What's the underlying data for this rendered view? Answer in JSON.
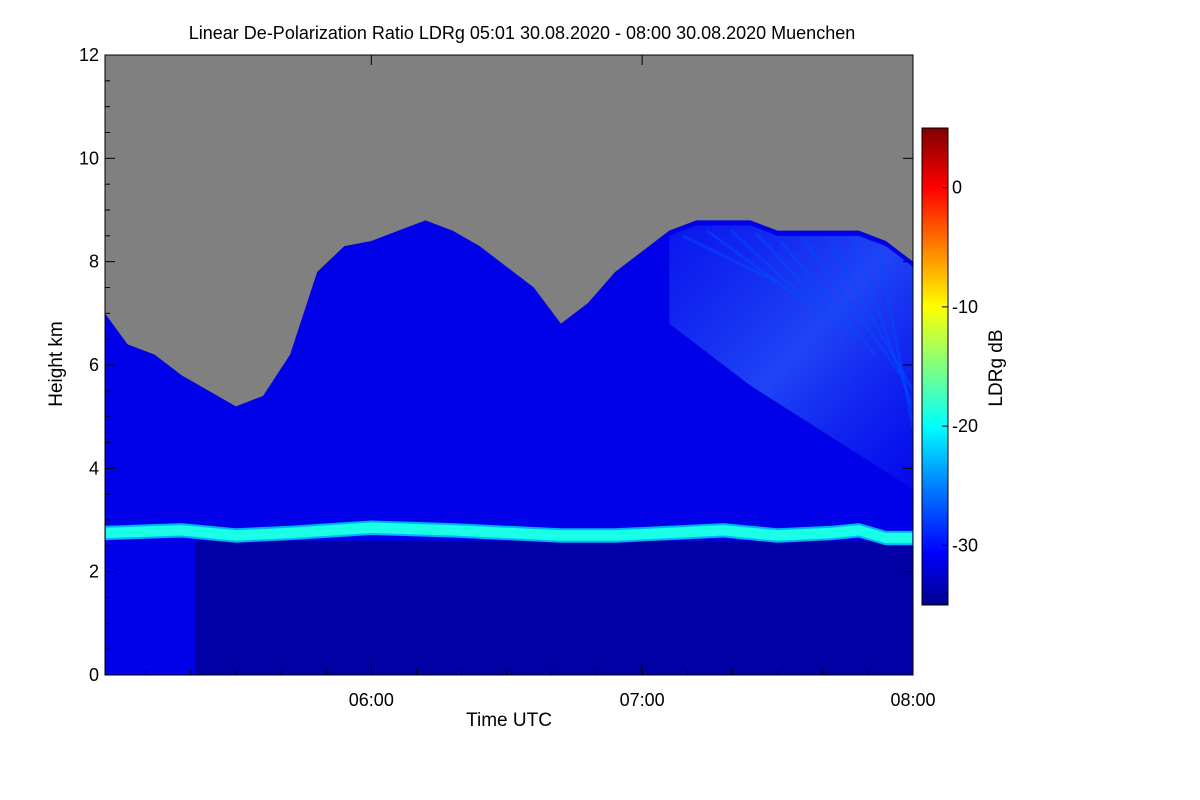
{
  "chart_data": {
    "type": "heatmap",
    "title": "Linear De-Polarization Ratio LDRg   05:01 30.08.2020 - 08:00 30.08.2020 Muenchen",
    "xlabel": "Time UTC",
    "ylabel": "Height km",
    "x_range_hours": [
      5.0167,
      8.0
    ],
    "y_range_km": [
      0,
      12
    ],
    "x_ticks": [
      {
        "label": "06:00",
        "value": 6.0
      },
      {
        "label": "07:00",
        "value": 7.0
      },
      {
        "label": "08:00",
        "value": 8.0
      }
    ],
    "y_ticks": [
      {
        "label": "0",
        "value": 0
      },
      {
        "label": "2",
        "value": 2
      },
      {
        "label": "4",
        "value": 4
      },
      {
        "label": "6",
        "value": 6
      },
      {
        "label": "8",
        "value": 8
      },
      {
        "label": "10",
        "value": 10
      },
      {
        "label": "12",
        "value": 12
      }
    ],
    "colorbar": {
      "label": "LDRg dB",
      "range": [
        -35,
        5
      ],
      "ticks": [
        {
          "label": "0",
          "value": 0
        },
        {
          "label": "-10",
          "value": -10
        },
        {
          "label": "-20",
          "value": -20
        },
        {
          "label": "-30",
          "value": -30
        }
      ],
      "colormap": [
        "#00008f",
        "#0000ff",
        "#0080ff",
        "#00ffff",
        "#80ff80",
        "#ffff00",
        "#ff8000",
        "#ff0000",
        "#800000"
      ]
    },
    "no_signal_color": "#808080",
    "cloud_top_km": [
      [
        5.0167,
        7.0
      ],
      [
        5.1,
        6.4
      ],
      [
        5.2,
        6.2
      ],
      [
        5.3,
        5.8
      ],
      [
        5.4,
        5.5
      ],
      [
        5.5,
        5.2
      ],
      [
        5.6,
        5.4
      ],
      [
        5.7,
        6.2
      ],
      [
        5.75,
        7.0
      ],
      [
        5.8,
        7.8
      ],
      [
        5.9,
        8.3
      ],
      [
        6.0,
        8.4
      ],
      [
        6.1,
        8.6
      ],
      [
        6.2,
        8.8
      ],
      [
        6.3,
        8.6
      ],
      [
        6.4,
        8.3
      ],
      [
        6.5,
        7.9
      ],
      [
        6.6,
        7.5
      ],
      [
        6.7,
        6.8
      ],
      [
        6.8,
        7.2
      ],
      [
        6.9,
        7.8
      ],
      [
        7.0,
        8.2
      ],
      [
        7.1,
        8.6
      ],
      [
        7.2,
        8.8
      ],
      [
        7.3,
        8.8
      ],
      [
        7.4,
        8.8
      ],
      [
        7.5,
        8.6
      ],
      [
        7.6,
        8.6
      ],
      [
        7.7,
        8.6
      ],
      [
        7.8,
        8.6
      ],
      [
        7.9,
        8.4
      ],
      [
        8.0,
        8.0
      ]
    ],
    "melting_layer_height_km": [
      [
        5.0167,
        2.75
      ],
      [
        5.3,
        2.8
      ],
      [
        5.5,
        2.7
      ],
      [
        5.7,
        2.75
      ],
      [
        6.0,
        2.85
      ],
      [
        6.3,
        2.8
      ],
      [
        6.5,
        2.75
      ],
      [
        6.7,
        2.7
      ],
      [
        6.9,
        2.7
      ],
      [
        7.1,
        2.75
      ],
      [
        7.3,
        2.8
      ],
      [
        7.5,
        2.7
      ],
      [
        7.7,
        2.75
      ],
      [
        7.8,
        2.8
      ],
      [
        7.9,
        2.65
      ],
      [
        8.0,
        2.65
      ]
    ],
    "melting_layer_ldr_db": [
      [
        5.0167,
        -23
      ],
      [
        5.5,
        -23
      ],
      [
        6.0,
        -22
      ],
      [
        6.3,
        -19
      ],
      [
        6.5,
        -17
      ],
      [
        6.7,
        -16
      ],
      [
        6.9,
        -16
      ],
      [
        7.1,
        -18
      ],
      [
        7.4,
        -20
      ],
      [
        7.7,
        -21
      ],
      [
        8.0,
        -22
      ]
    ],
    "background_ldr_db": {
      "below_melting_layer": -34,
      "cloud": -31,
      "fall_streaks": -27
    }
  }
}
